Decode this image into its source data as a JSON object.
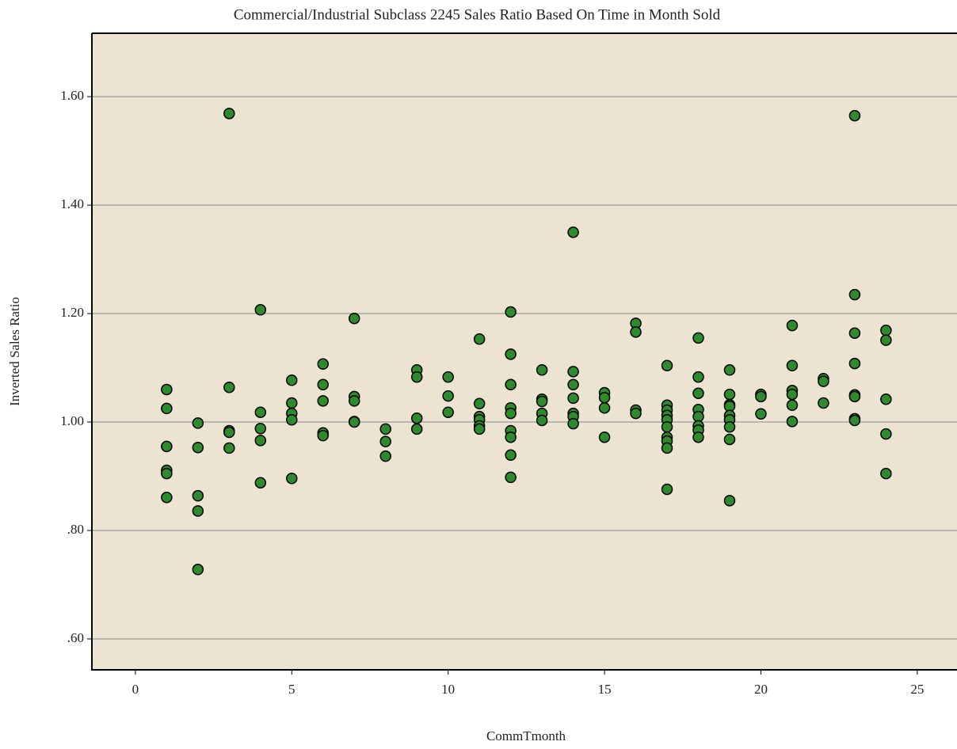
{
  "chart_data": {
    "type": "scatter",
    "title": "Commercial/Industrial Subclass 2245 Sales Ratio Based On Time in Month Sold",
    "x_label": "CommTmonth",
    "y_label": "Inverted Sales Ratio",
    "color": "#2f8a2c",
    "x": [
      1,
      1,
      1,
      1,
      1,
      1,
      2,
      2,
      2,
      2,
      2,
      3,
      3,
      3,
      3,
      3,
      4,
      4,
      4,
      4,
      4,
      5,
      5,
      5,
      5,
      5,
      6,
      6,
      6,
      6,
      6,
      7,
      7,
      7,
      7,
      7,
      8,
      8,
      8,
      9,
      9,
      9,
      9,
      10,
      10,
      10,
      11,
      11,
      11,
      11,
      11,
      11,
      12,
      12,
      12,
      12,
      12,
      12,
      12,
      12,
      12,
      13,
      13,
      13,
      13,
      13,
      14,
      14,
      14,
      14,
      14,
      14,
      14,
      15,
      15,
      15,
      15,
      16,
      16,
      16,
      16,
      17,
      17,
      17,
      17,
      17,
      17,
      17,
      17,
      17,
      17,
      18,
      18,
      18,
      18,
      18,
      18,
      18,
      18,
      19,
      19,
      19,
      19,
      19,
      19,
      19,
      19,
      19,
      20,
      20,
      20,
      21,
      21,
      21,
      21,
      21,
      21,
      22,
      22,
      22,
      23,
      23,
      23,
      23,
      23,
      23,
      23,
      23,
      24,
      24,
      24,
      24,
      24
    ],
    "values": [
      1.06,
      1.025,
      0.955,
      0.911,
      0.905,
      0.861,
      0.998,
      0.953,
      0.864,
      0.836,
      0.728,
      1.569,
      1.064,
      0.984,
      0.981,
      0.952,
      1.207,
      1.018,
      0.988,
      0.966,
      0.888,
      1.077,
      1.035,
      1.016,
      1.004,
      0.896,
      1.107,
      1.069,
      1.039,
      0.98,
      0.975,
      1.191,
      1.047,
      1.039,
      1.001,
      1.0,
      0.987,
      0.964,
      0.937,
      1.096,
      1.083,
      1.007,
      0.987,
      1.083,
      1.048,
      1.018,
      1.153,
      1.034,
      1.01,
      1.004,
      0.993,
      0.987,
      1.203,
      1.125,
      1.069,
      1.026,
      1.016,
      0.984,
      0.972,
      0.939,
      0.898,
      1.096,
      1.042,
      1.038,
      1.016,
      1.003,
      1.35,
      1.093,
      1.069,
      1.044,
      1.016,
      1.01,
      0.997,
      1.054,
      1.045,
      1.026,
      0.972,
      1.182,
      1.166,
      1.022,
      1.016,
      1.104,
      1.031,
      1.022,
      1.012,
      1.004,
      0.991,
      0.972,
      0.965,
      0.952,
      0.876,
      1.155,
      1.083,
      1.053,
      1.023,
      1.01,
      0.993,
      0.985,
      0.972,
      1.096,
      1.051,
      1.032,
      1.029,
      1.012,
      1.004,
      0.991,
      0.968,
      0.855,
      1.051,
      1.047,
      1.015,
      1.178,
      1.104,
      1.058,
      1.051,
      1.031,
      1.001,
      1.08,
      1.075,
      1.035,
      1.565,
      1.235,
      1.164,
      1.108,
      1.05,
      1.047,
      1.006,
      1.003,
      1.169,
      1.151,
      1.042,
      0.978,
      0.905
    ],
    "xlim": [
      -1.39,
      26.27
    ],
    "xticks": [
      0,
      5,
      10,
      15,
      20,
      25
    ],
    "ylim": [
      0.543,
      1.717
    ],
    "yticks": [
      {
        "value": 0.6,
        "label": ".60"
      },
      {
        "value": 0.8,
        "label": ".80"
      },
      {
        "value": 1,
        "label": "1.00"
      },
      {
        "value": 1.2,
        "label": "1.20"
      },
      {
        "value": 1.4,
        "label": "1.40"
      },
      {
        "value": 1.6,
        "label": "1.60"
      }
    ],
    "grid": true
  }
}
